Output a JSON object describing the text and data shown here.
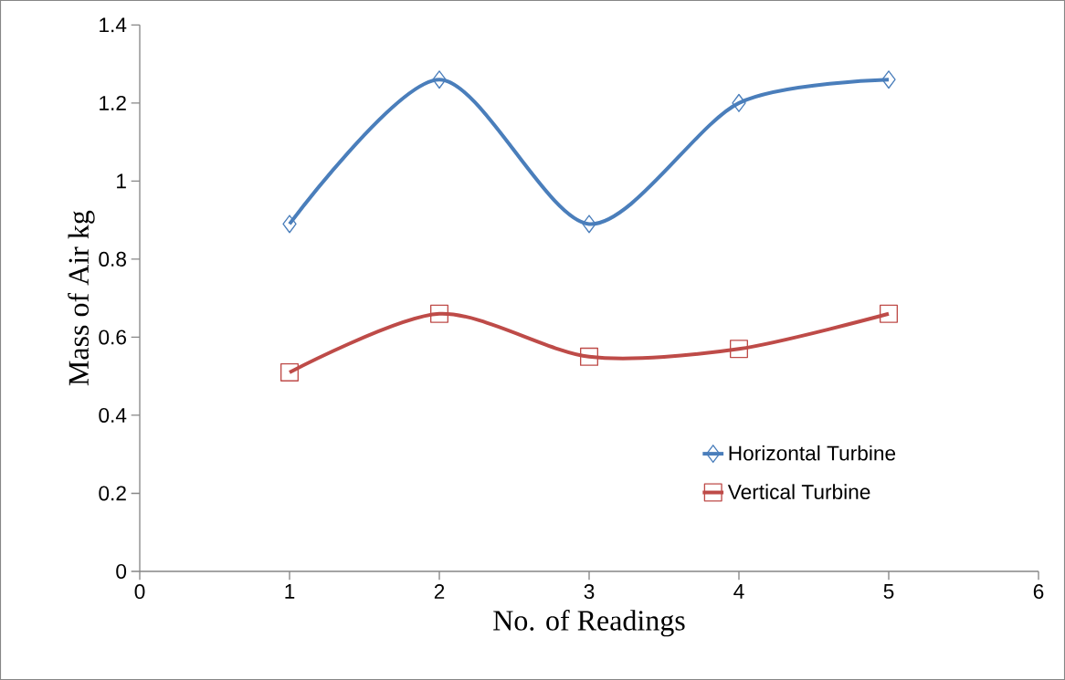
{
  "chart_data": {
    "type": "line",
    "xlabel": "No. of Readings",
    "ylabel": "Mass of Air kg",
    "xlim": [
      0,
      6
    ],
    "xticks": [
      0,
      1,
      2,
      3,
      4,
      5,
      6
    ],
    "ylim": [
      0,
      1.4
    ],
    "yticks": [
      0,
      0.2,
      0.4,
      0.6,
      0.8,
      1,
      1.2,
      1.4
    ],
    "x": [
      1,
      2,
      3,
      4,
      5
    ],
    "series": [
      {
        "name": "Horizontal Turbine",
        "color": "#4a7ebb",
        "marker": "diamond",
        "values": [
          0.89,
          1.26,
          0.89,
          1.2,
          1.26
        ]
      },
      {
        "name": "Vertical Turbine",
        "color": "#be4b48",
        "marker": "square",
        "values": [
          0.51,
          0.66,
          0.55,
          0.57,
          0.66
        ]
      }
    ],
    "grid": false,
    "legend": "bottom right",
    "line_style": "solid"
  }
}
